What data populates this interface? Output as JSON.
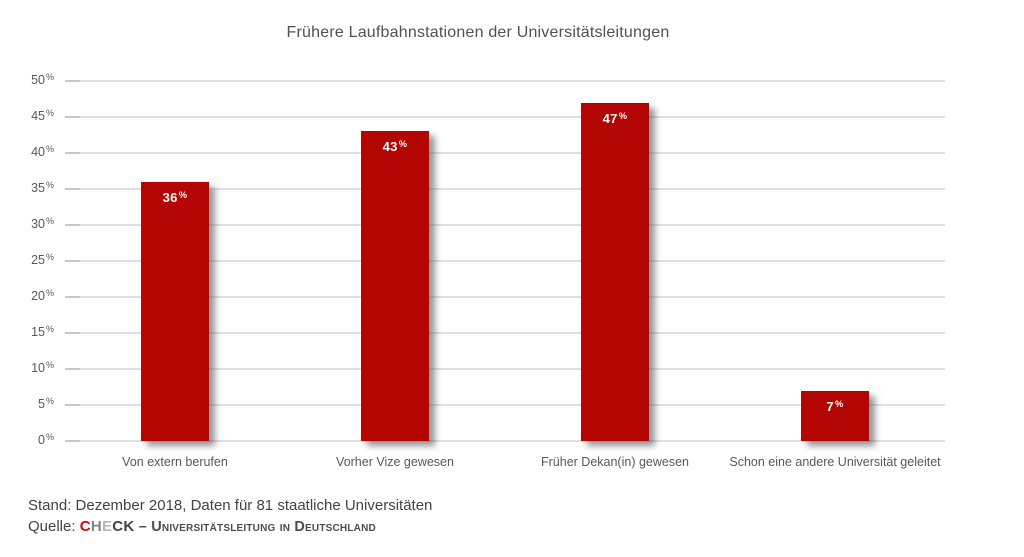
{
  "chart_data": {
    "type": "bar",
    "title": "Frühere Laufbahnstationen der Universitätsleitungen",
    "categories": [
      "Von extern berufen",
      "Vorher Vize gewesen",
      "Früher Dekan(in) gewesen",
      "Schon eine andere Universität geleitet"
    ],
    "values": [
      36,
      43,
      47,
      7
    ],
    "value_labels": [
      "36%",
      "43%",
      "47%",
      "7%"
    ],
    "xlabel": "",
    "ylabel": "",
    "ylim": [
      0,
      50
    ],
    "ytick_step": 5,
    "ytick_labels": [
      "0%",
      "5%",
      "10%",
      "15%",
      "20%",
      "25%",
      "30%",
      "35%",
      "40%",
      "45%",
      "50%"
    ],
    "grid": true,
    "legend": "none",
    "bar_color": "#b30603",
    "gridline_color": "#e0e0e0",
    "axis_text_color": "#58585a"
  },
  "footer": {
    "line1": "Stand: Dezember 2018, Daten für 81 staatliche Universitäten",
    "source_label": "Quelle: ",
    "brand": {
      "c": "C",
      "h": "H",
      "e": "E",
      "ck": "CK"
    },
    "brand_suffix": "– Universitätsleitung in Deutschland"
  }
}
